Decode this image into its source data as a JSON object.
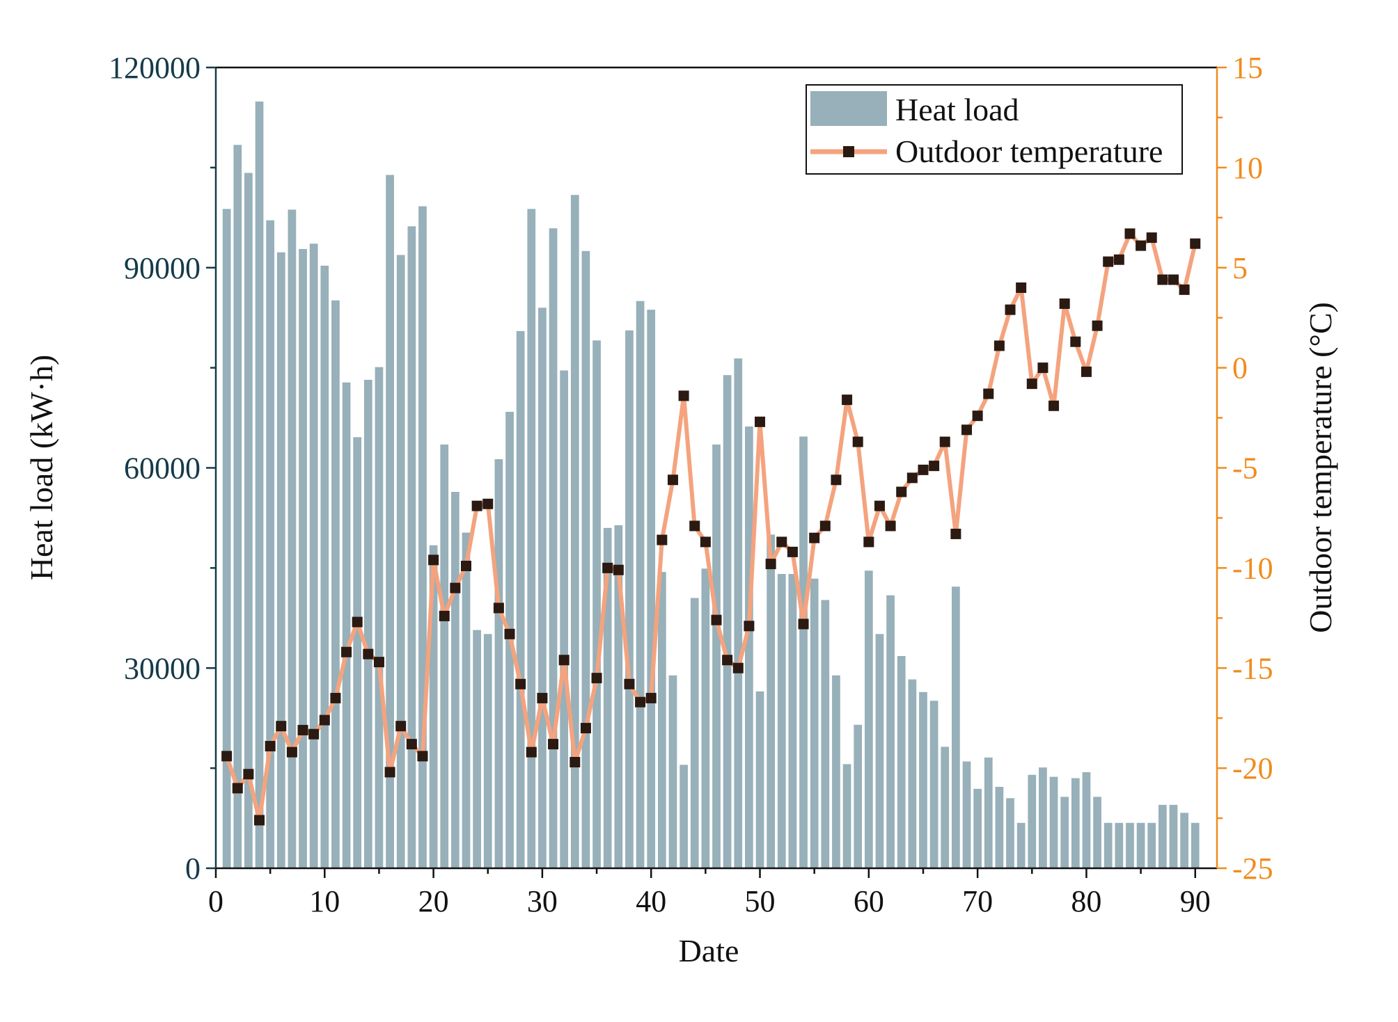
{
  "chart_data": {
    "type": "bar+line",
    "x": [
      1,
      2,
      3,
      4,
      5,
      6,
      7,
      8,
      9,
      10,
      11,
      12,
      13,
      14,
      15,
      16,
      17,
      18,
      19,
      20,
      21,
      22,
      23,
      24,
      25,
      26,
      27,
      28,
      29,
      30,
      31,
      32,
      33,
      34,
      35,
      36,
      37,
      38,
      39,
      40,
      41,
      42,
      43,
      44,
      45,
      46,
      47,
      48,
      49,
      50,
      51,
      52,
      53,
      54,
      55,
      56,
      57,
      58,
      59,
      60,
      61,
      62,
      63,
      64,
      65,
      66,
      67,
      68,
      69,
      70,
      71,
      72,
      73,
      74,
      75,
      76,
      77,
      78,
      79,
      80,
      81,
      82,
      83,
      84,
      85,
      86,
      87,
      88,
      89,
      90
    ],
    "series": [
      {
        "name": "Heat load",
        "kind": "bar",
        "axis": "left",
        "color": "#97b0b9",
        "values": [
          98800,
          108400,
          104200,
          114900,
          97100,
          92300,
          98700,
          92800,
          93600,
          90300,
          85100,
          72800,
          64600,
          73200,
          75100,
          103900,
          91900,
          96200,
          99200,
          48400,
          63500,
          56400,
          50300,
          35700,
          35100,
          61300,
          68400,
          80500,
          98800,
          84000,
          95900,
          74600,
          100900,
          92500,
          79100,
          51000,
          51400,
          80600,
          85000,
          83700,
          44400,
          28900,
          15500,
          40500,
          44900,
          63500,
          73900,
          76400,
          66200,
          26500,
          50000,
          44100,
          44100,
          64700,
          43400,
          40200,
          28900,
          15600,
          21500,
          44600,
          35100,
          40900,
          31800,
          28300,
          26400,
          25100,
          18200,
          42200,
          16000,
          11900,
          16600,
          12200,
          10500,
          6800,
          14000,
          15100,
          13700,
          10700,
          13500,
          14400,
          10700,
          6800,
          6800,
          6800,
          6800,
          6800,
          9500,
          9500,
          8300,
          6800
        ]
      },
      {
        "name": "Outdoor temperature",
        "kind": "line",
        "axis": "right",
        "color": "#f4a37e",
        "marker_color": "#2b1a12",
        "values": [
          -19.4,
          -21.0,
          -20.3,
          -22.6,
          -18.9,
          -17.9,
          -19.2,
          -18.1,
          -18.3,
          -17.6,
          -16.5,
          -14.2,
          -12.7,
          -14.3,
          -14.7,
          -20.2,
          -17.9,
          -18.8,
          -19.4,
          -9.6,
          -12.4,
          -11.0,
          -9.9,
          -6.9,
          -6.8,
          -12.0,
          -13.3,
          -15.8,
          -19.2,
          -16.5,
          -18.8,
          -14.6,
          -19.7,
          -18.0,
          -15.5,
          -10.0,
          -10.1,
          -15.8,
          -16.7,
          -16.5,
          -8.6,
          -5.6,
          -1.4,
          -7.9,
          -8.7,
          -12.6,
          -14.6,
          -15.0,
          -12.9,
          -2.7,
          -9.8,
          -8.7,
          -9.2,
          -12.8,
          -8.5,
          -7.9,
          -5.6,
          -1.6,
          -3.7,
          -8.7,
          -6.9,
          -7.9,
          -6.2,
          -5.5,
          -5.1,
          -4.9,
          -3.7,
          -8.3,
          -3.1,
          -2.4,
          -1.3,
          1.1,
          2.9,
          4.0,
          -0.8,
          0.0,
          -1.9,
          3.2,
          1.3,
          -0.2,
          2.1,
          5.3,
          5.4,
          6.7,
          6.1,
          6.5,
          4.4,
          4.4,
          3.9,
          6.2
        ]
      }
    ],
    "xlabel": "Date",
    "ylabel_left": "Heat load (kW·h)",
    "ylabel_right": "Outdoor temperature (°C)",
    "xlim": [
      0,
      92
    ],
    "ylim_left": [
      0,
      120000
    ],
    "ylim_right": [
      -25,
      15
    ],
    "x_ticks": [
      "0",
      "10",
      "20",
      "30",
      "40",
      "50",
      "60",
      "70",
      "80",
      "90"
    ],
    "y_left_ticks": [
      "0",
      "30000",
      "60000",
      "90000",
      "120000"
    ],
    "y_right_ticks": [
      "-25",
      "-20",
      "-15",
      "-10",
      "-5",
      "0",
      "5",
      "10",
      "15"
    ],
    "legend": {
      "position": "top-right",
      "entries": [
        "Heat load",
        "Outdoor temperature"
      ]
    },
    "colors": {
      "left_axis": "#153a4a",
      "right_axis": "#f08c1e",
      "axis": "#111111"
    }
  }
}
